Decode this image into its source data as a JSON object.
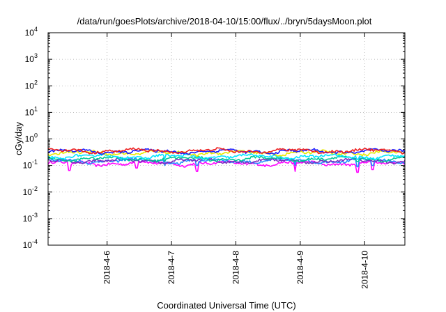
{
  "chart_data": {
    "type": "line",
    "title": "/data/run/goesPlots/archive/2018-04-10/15:00/flux/../bryn/5daysMoon.plot",
    "xlabel": "Coordinated Universal Time (UTC)",
    "ylabel": "cGy/day",
    "y_scale": "log",
    "ylim": [
      0.0001,
      10000
    ],
    "y_ticks": [
      {
        "value": 0.0001,
        "base": "10",
        "exp": "-4"
      },
      {
        "value": 0.001,
        "base": "10",
        "exp": "-3"
      },
      {
        "value": 0.01,
        "base": "10",
        "exp": "-2"
      },
      {
        "value": 0.1,
        "base": "10",
        "exp": "-1"
      },
      {
        "value": 1,
        "base": "10",
        "exp": "0"
      },
      {
        "value": 10,
        "base": "10",
        "exp": "1"
      },
      {
        "value": 100,
        "base": "10",
        "exp": "2"
      },
      {
        "value": 1000,
        "base": "10",
        "exp": "3"
      },
      {
        "value": 10000,
        "base": "10",
        "exp": "4"
      }
    ],
    "xlim": [
      "2018-04-05T02:00",
      "2018-04-10T15:00"
    ],
    "x_ticks": [
      {
        "label": "2018-4-6",
        "value": "2018-04-06T00:00"
      },
      {
        "label": "2018-4-7",
        "value": "2018-04-07T00:00"
      },
      {
        "label": "2018-4-8",
        "value": "2018-04-08T00:00"
      },
      {
        "label": "2018-4-9",
        "value": "2018-04-09T00:00"
      },
      {
        "label": "2018-4-10",
        "value": "2018-04-10T00:00"
      }
    ],
    "grid": true,
    "legend": "none",
    "series": [
      {
        "color": "#ff00ff",
        "level": 0.12,
        "dips": [
          [
            "2018-04-05T10:00",
            0.065
          ],
          [
            "2018-04-06T11:00",
            0.08
          ],
          [
            "2018-04-07T09:30",
            0.06
          ],
          [
            "2018-04-08T22:00",
            0.06
          ],
          [
            "2018-04-09T21:30",
            0.055
          ],
          [
            "2018-04-10T03:00",
            0.07
          ]
        ]
      },
      {
        "color": "#1e90ff",
        "level": 0.15,
        "dips": [
          [
            "2018-04-06T21:30",
            0.1
          ],
          [
            "2018-04-07T03:00",
            0.11
          ],
          [
            "2018-04-07T09:30",
            0.1
          ],
          [
            "2018-04-08T22:00",
            0.1
          ],
          [
            "2018-04-09T21:30",
            0.09
          ],
          [
            "2018-04-10T03:00",
            0.1
          ]
        ]
      },
      {
        "color": "#7b2cbf",
        "level": 0.15,
        "dips": []
      },
      {
        "color": "#00c896",
        "level": 0.18,
        "dips": [
          [
            "2018-04-06T21:30",
            0.14
          ],
          [
            "2018-04-09T21:30",
            0.14
          ]
        ]
      },
      {
        "color": "#00e5ff",
        "level": 0.22,
        "dips": [
          [
            "2018-04-06T21:30",
            0.18
          ],
          [
            "2018-04-09T21:30",
            0.17
          ]
        ]
      },
      {
        "color": "#e8e800",
        "level": 0.3,
        "dips": []
      },
      {
        "color": "#1a1aff",
        "level": 0.34,
        "dips": []
      },
      {
        "color": "#ee2222",
        "level": 0.36,
        "dips": []
      }
    ]
  }
}
